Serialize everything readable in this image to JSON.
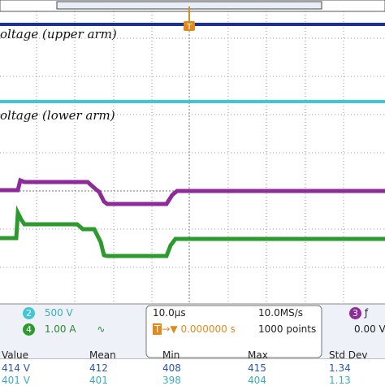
{
  "screen": {
    "trace_labels": [
      "oltage (upper arm)",
      "oltage (lower arm)"
    ],
    "trigger_marker": "T"
  },
  "status": {
    "channels": [
      {
        "number": "2",
        "scale": "500 V"
      },
      {
        "number": "4",
        "scale": "1.00 A",
        "coupling": "∿"
      }
    ],
    "horizontal_scale": "10.0µs",
    "trigger_position": "0.000000 s",
    "sample_rate": "10.0MS/s",
    "record_length": "1000 points",
    "trigger_channel": "3",
    "trigger_slope": "ƒ",
    "trigger_level": "0.00 V"
  },
  "measurements": {
    "headers": [
      "Value",
      "Mean",
      "Min",
      "Max",
      "Std Dev"
    ],
    "rows": [
      [
        "414 V",
        "412",
        "408",
        "415",
        "1.34"
      ],
      [
        "401 V",
        "401",
        "398",
        "404",
        "1.13"
      ]
    ]
  }
}
